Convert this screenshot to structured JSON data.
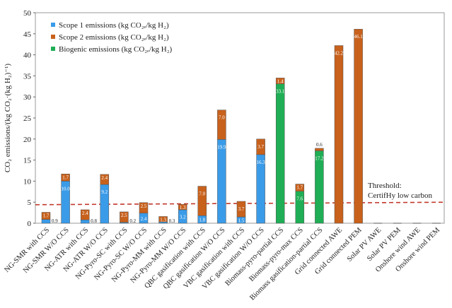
{
  "chart_data": {
    "type": "bar",
    "stacked": true,
    "ylabel": "CO₂ emissions/(kg CO₂·(kg H₂)⁻¹)",
    "ylim": [
      0,
      50
    ],
    "yticks": [
      0,
      5,
      10,
      15,
      20,
      25,
      30,
      35,
      40,
      45,
      50
    ],
    "grid": false,
    "legend_position": "top-left",
    "categories": [
      "NG-SMR with CCS",
      "NG-SMR W/O CCS",
      "NG-ATR with CCS",
      "NG-ATR W/O CCS",
      "NG-Pyro-SC with CCS",
      "NG-Pyro-SC W/O CCS",
      "NG-Pyro-MM with CCS",
      "NG-Pyro-MM W/O CCS",
      "QBC gasification with CCS",
      "QBC gasification W/O CCS",
      "VBC gasification with CCS",
      "VBC gasification W/O CCS",
      "Biomass-pyro-partial CCS",
      "Biomass-pyro-max CCS",
      "Biomass gasification-partial CCS",
      "Grid connected AWE",
      "Grid connected PEM",
      "Solar PV AWE",
      "Solar PV PEM",
      "Onshore wind AWE",
      "Onshore wind PEM"
    ],
    "series": [
      {
        "name": "Scope 1 emissions (kg CO₂ₑ/kg H₂)",
        "color": "#3a9be8",
        "values": [
          0.9,
          10.0,
          0.8,
          9.2,
          0.2,
          2.4,
          0.3,
          3.2,
          1.8,
          19.9,
          1.5,
          16.3,
          0,
          0,
          0,
          0,
          0,
          0,
          0,
          0,
          0
        ]
      },
      {
        "name": "Biogenic emissions (kg CO₂ₑ/kg H₂)",
        "color": "#1fae55",
        "values": [
          0,
          0,
          0,
          0,
          0,
          0,
          0,
          0,
          0,
          0,
          0,
          0,
          33.1,
          7.6,
          17.2,
          0,
          0,
          0,
          0,
          0,
          0
        ]
      },
      {
        "name": "Scope 2 emissions (kg CO₂ₑ/kg H₂)",
        "color": "#c8611c",
        "values": [
          1.7,
          1.7,
          2.4,
          2.4,
          2.5,
          2.5,
          1.3,
          1.3,
          7.0,
          7.0,
          3.7,
          3.7,
          1.4,
          1.7,
          0.6,
          42.2,
          46.1,
          0,
          0,
          0,
          0
        ]
      }
    ],
    "legend_order": [
      "Scope 1 emissions (kg CO₂ₑ/kg H₂)",
      "Scope 2 emissions (kg CO₂ₑ/kg H₂)",
      "Biogenic emissions (kg CO₂ₑ/kg H₂)"
    ],
    "threshold": {
      "value": 4.4,
      "label_line1": "Threshold:",
      "label_line2": "CertifHy low carbon",
      "color": "#c0392b"
    }
  }
}
